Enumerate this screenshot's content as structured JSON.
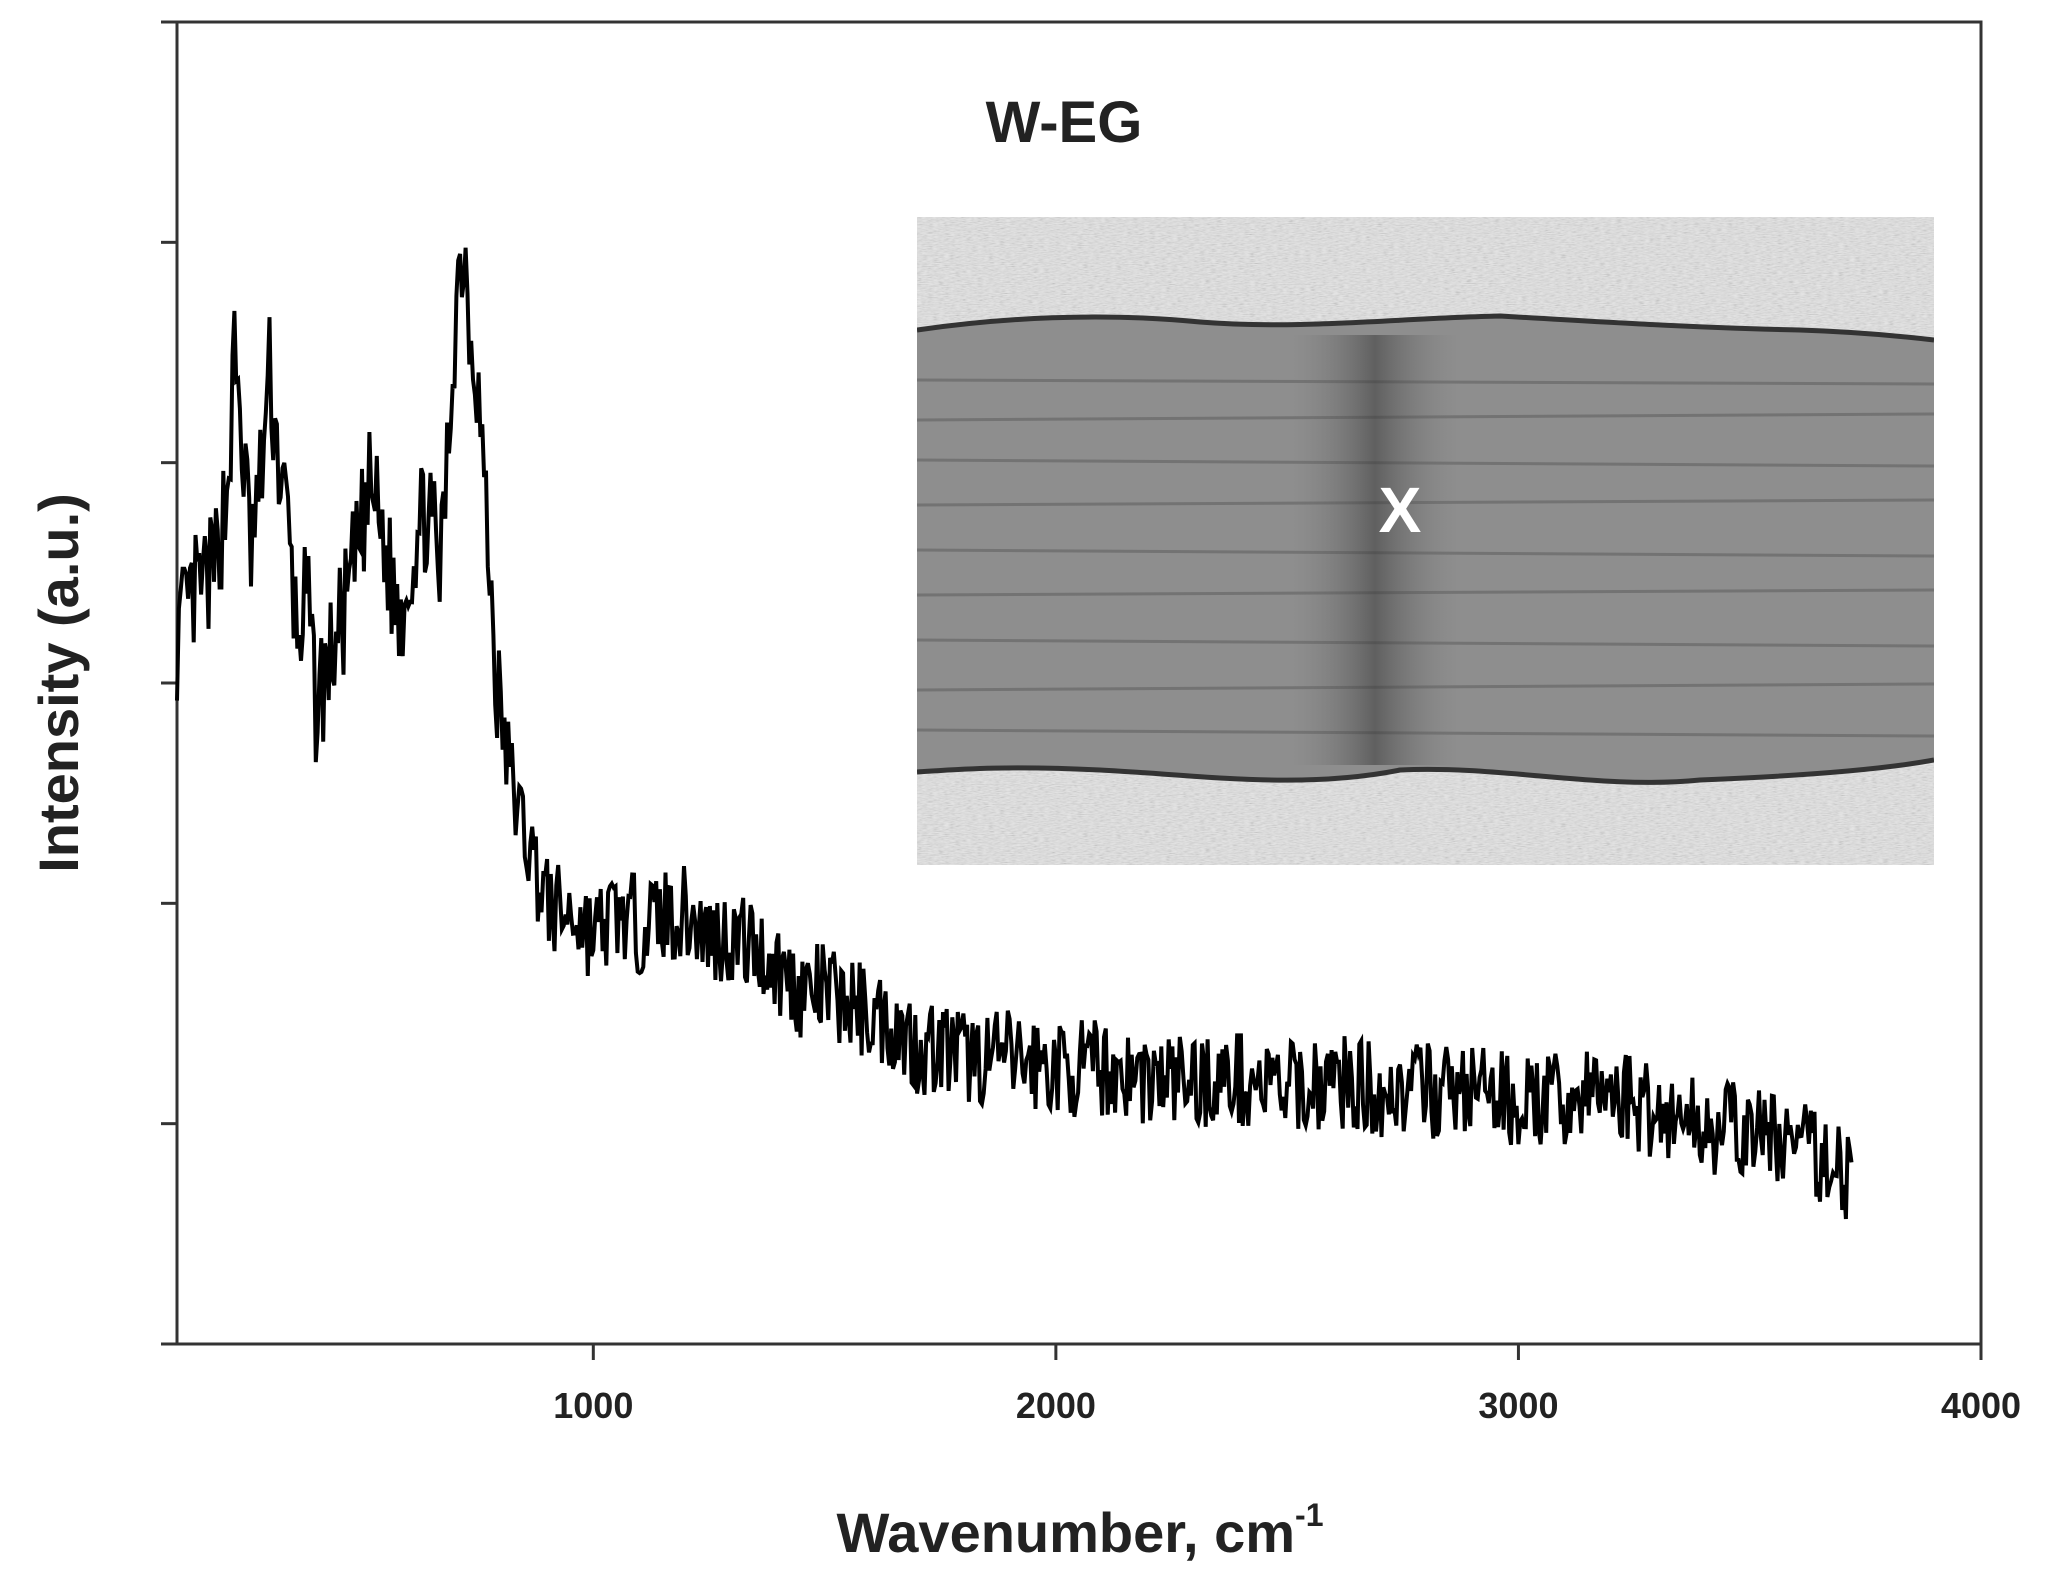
{
  "chart_data": {
    "type": "line",
    "title": "W-EG",
    "xlabel": "Wavenumber, cm",
    "xlabel_superscript": "-1",
    "ylabel": "Intensity (a.u.)",
    "xlim": [
      100,
      4000
    ],
    "ylim": [
      0,
      6
    ],
    "x_ticks": [
      1000,
      2000,
      3000,
      4000
    ],
    "x_tick_labels": [
      "1000",
      "2000",
      "3000",
      "4000"
    ],
    "y_ticks": [
      0,
      1,
      2,
      3,
      4,
      5,
      6
    ],
    "y_tick_labels_shown": false,
    "grid": false,
    "legend": "none",
    "inset": {
      "kind": "micrograph",
      "marker_label": "X"
    },
    "series": [
      {
        "color": "#000000",
        "points": [
          [
            100,
            3.2
          ],
          [
            140,
            3.4
          ],
          [
            180,
            3.5
          ],
          [
            210,
            3.9
          ],
          [
            225,
            4.5
          ],
          [
            240,
            4.1
          ],
          [
            260,
            3.6
          ],
          [
            280,
            3.9
          ],
          [
            300,
            4.4
          ],
          [
            320,
            4.0
          ],
          [
            340,
            3.7
          ],
          [
            360,
            3.2
          ],
          [
            380,
            3.4
          ],
          [
            400,
            2.9
          ],
          [
            430,
            3.1
          ],
          [
            460,
            3.3
          ],
          [
            490,
            3.6
          ],
          [
            520,
            3.9
          ],
          [
            550,
            3.6
          ],
          [
            580,
            3.3
          ],
          [
            610,
            3.6
          ],
          [
            640,
            3.8
          ],
          [
            670,
            3.5
          ],
          [
            690,
            4.2
          ],
          [
            705,
            4.8
          ],
          [
            720,
            5.0
          ],
          [
            735,
            4.6
          ],
          [
            750,
            4.4
          ],
          [
            770,
            3.7
          ],
          [
            790,
            3.0
          ],
          [
            810,
            2.7
          ],
          [
            840,
            2.4
          ],
          [
            870,
            2.2
          ],
          [
            900,
            2.0
          ],
          [
            930,
            1.95
          ],
          [
            960,
            1.95
          ],
          [
            1000,
            1.85
          ],
          [
            1050,
            1.95
          ],
          [
            1100,
            1.9
          ],
          [
            1150,
            1.95
          ],
          [
            1200,
            1.95
          ],
          [
            1250,
            1.85
          ],
          [
            1300,
            1.85
          ],
          [
            1350,
            1.8
          ],
          [
            1400,
            1.7
          ],
          [
            1450,
            1.6
          ],
          [
            1500,
            1.6
          ],
          [
            1550,
            1.55
          ],
          [
            1600,
            1.5
          ],
          [
            1650,
            1.45
          ],
          [
            1700,
            1.35
          ],
          [
            1750,
            1.35
          ],
          [
            1800,
            1.3
          ],
          [
            1900,
            1.3
          ],
          [
            2000,
            1.25
          ],
          [
            2100,
            1.25
          ],
          [
            2200,
            1.2
          ],
          [
            2300,
            1.2
          ],
          [
            2400,
            1.2
          ],
          [
            2500,
            1.15
          ],
          [
            2600,
            1.2
          ],
          [
            2700,
            1.15
          ],
          [
            2800,
            1.15
          ],
          [
            2900,
            1.15
          ],
          [
            3000,
            1.1
          ],
          [
            3100,
            1.1
          ],
          [
            3200,
            1.15
          ],
          [
            3300,
            1.05
          ],
          [
            3400,
            1.0
          ],
          [
            3500,
            0.95
          ],
          [
            3550,
            0.95
          ],
          [
            3600,
            0.9
          ],
          [
            3650,
            0.85
          ],
          [
            3700,
            0.8
          ],
          [
            3720,
            0.75
          ]
        ]
      }
    ]
  }
}
